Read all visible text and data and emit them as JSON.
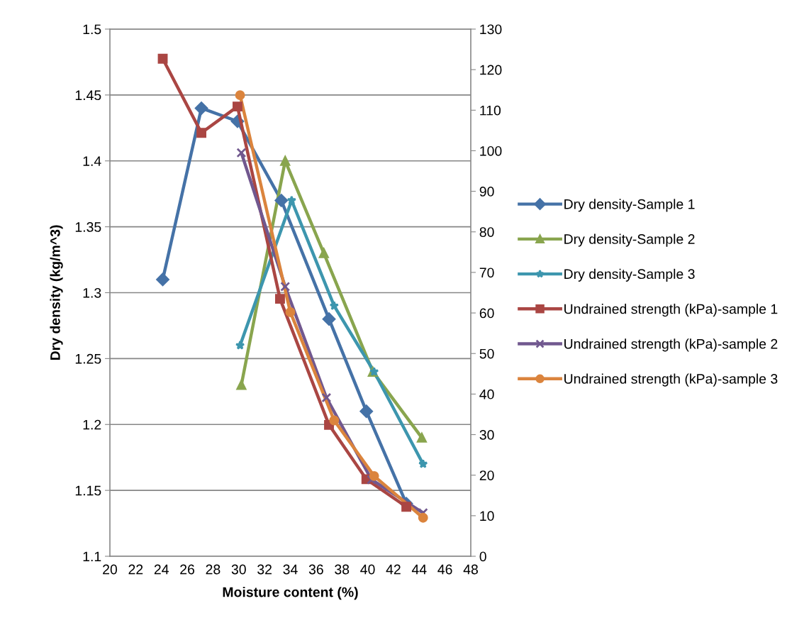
{
  "chart_data": {
    "type": "line",
    "xlabel": "Moisture content (%)",
    "ylabel": "Dry density (kg/m^3)",
    "xlim": [
      20,
      48
    ],
    "xticks": [
      20,
      22,
      24,
      26,
      28,
      30,
      32,
      34,
      36,
      38,
      40,
      42,
      44,
      46,
      48
    ],
    "ylim": [
      1.1,
      1.5
    ],
    "yticks": [
      1.1,
      1.15,
      1.2,
      1.25,
      1.3,
      1.35,
      1.4,
      1.45,
      1.5
    ],
    "y2lim": [
      0,
      130
    ],
    "y2ticks": [
      0,
      10,
      20,
      30,
      40,
      50,
      60,
      70,
      80,
      90,
      100,
      110,
      120,
      130
    ],
    "grid": "y",
    "legend": "right",
    "line_style": "solid",
    "series": [
      {
        "name": "Dry density-Sample 1",
        "color": "#4572a7",
        "marker": "diamond",
        "x": [
          24.1,
          27.1,
          29.9,
          33.3,
          37.0,
          39.9,
          43.0
        ],
        "values": [
          1.31,
          1.44,
          1.43,
          1.37,
          1.28,
          1.21,
          1.14
        ]
      },
      {
        "name": "Dry density-Sample 2",
        "color": "#89a54e",
        "marker": "triangle",
        "x": [
          30.2,
          33.6,
          36.6,
          40.4,
          44.2
        ],
        "values": [
          1.23,
          1.4,
          1.33,
          1.24,
          1.19
        ]
      },
      {
        "name": "Dry density-Sample 3",
        "color": "#3d96ae",
        "marker": "star",
        "x": [
          30.1,
          34.1,
          37.4,
          40.5,
          44.3
        ],
        "values": [
          1.26,
          1.37,
          1.29,
          1.24,
          1.17
        ]
      },
      {
        "name": "Undrained strength (kPa)-sample 1",
        "color": "#aa4643",
        "marker": "square",
        "axis": "y2",
        "x": [
          24.1,
          27.1,
          29.9,
          33.2,
          37.0,
          39.9,
          43.0
        ],
        "values": [
          122.7,
          104.4,
          110.9,
          63.5,
          32.4,
          19.0,
          12.2
        ]
      },
      {
        "name": "Undrained strength (kPa)-sample 2",
        "color": "#71588f",
        "marker": "cross",
        "axis": "y2",
        "x": [
          30.2,
          33.6,
          36.8,
          40.3,
          44.3
        ],
        "values": [
          99.5,
          66.5,
          39.1,
          18.9,
          10.7
        ]
      },
      {
        "name": "Undrained strength (kPa)-sample 3",
        "color": "#db843d",
        "marker": "circle",
        "axis": "y2",
        "x": [
          30.1,
          34.0,
          37.4,
          40.5,
          44.3
        ],
        "values": [
          113.7,
          60.2,
          33.5,
          19.8,
          9.5
        ]
      }
    ]
  }
}
